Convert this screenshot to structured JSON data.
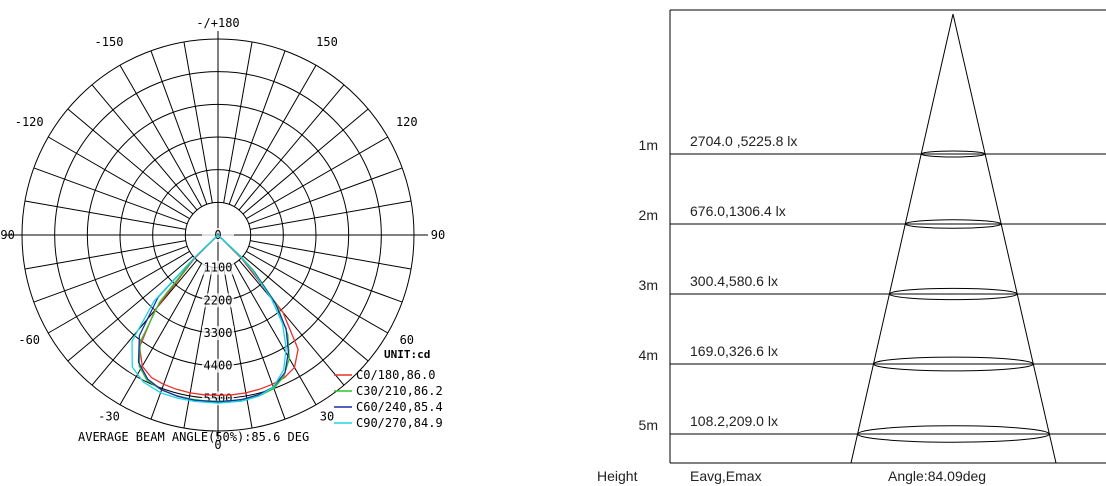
{
  "chart_data": [
    {
      "type": "polar",
      "polar_labels": [
        {
          "text": "-/+180",
          "angle": 180
        },
        {
          "text": "150",
          "angle": 150
        },
        {
          "text": "-150",
          "angle": -150
        },
        {
          "text": "120",
          "angle": 120
        },
        {
          "text": "-120",
          "angle": -120
        },
        {
          "text": "90",
          "angle": 90
        },
        {
          "text": "-90",
          "angle": -90
        },
        {
          "text": "60",
          "angle": 60
        },
        {
          "text": "-60",
          "angle": -60
        },
        {
          "text": "30",
          "angle": 30
        },
        {
          "text": "-30",
          "angle": -30
        },
        {
          "text": "0",
          "angle": 0
        }
      ],
      "radial_labels": [
        "0",
        "1100",
        "2200",
        "3300",
        "4400",
        "5500"
      ],
      "rmax": 5500,
      "unit_label": "UNIT:cd",
      "footer": "AVERAGE BEAM ANGLE(50%):85.6 DEG",
      "series": [
        {
          "name": "C0/180,86.0",
          "color": "#e8302a",
          "points": [
            [
              -45,
              1150
            ],
            [
              -40,
              3300
            ],
            [
              -35,
              4600
            ],
            [
              -30,
              5100
            ],
            [
              -25,
              5300
            ],
            [
              -20,
              5350
            ],
            [
              -15,
              5380
            ],
            [
              -10,
              5400
            ],
            [
              -5,
              5400
            ],
            [
              0,
              5400
            ],
            [
              5,
              5400
            ],
            [
              10,
              5400
            ],
            [
              15,
              5380
            ],
            [
              20,
              5350
            ],
            [
              25,
              5300
            ],
            [
              30,
              5150
            ],
            [
              35,
              4700
            ],
            [
              40,
              3400
            ],
            [
              45,
              1150
            ]
          ]
        },
        {
          "name": "C30/210,86.2",
          "color": "#2ec42e",
          "points": [
            [
              -46,
              1100
            ],
            [
              -41,
              3000
            ],
            [
              -36,
              4450
            ],
            [
              -31,
              5150
            ],
            [
              -26,
              5450
            ],
            [
              -20,
              5550
            ],
            [
              -15,
              5580
            ],
            [
              -10,
              5600
            ],
            [
              -5,
              5600
            ],
            [
              0,
              5600
            ],
            [
              5,
              5600
            ],
            [
              10,
              5600
            ],
            [
              15,
              5580
            ],
            [
              20,
              5500
            ],
            [
              25,
              5250
            ],
            [
              30,
              4800
            ],
            [
              35,
              4100
            ],
            [
              40,
              3100
            ],
            [
              45,
              1700
            ],
            [
              47,
              1000
            ]
          ]
        },
        {
          "name": "C60/240,85.4",
          "color": "#1c2fa8",
          "points": [
            [
              -46,
              1100
            ],
            [
              -44,
              2900
            ],
            [
              -38,
              4300
            ],
            [
              -32,
              5050
            ],
            [
              -26,
              5400
            ],
            [
              -20,
              5550
            ],
            [
              -14,
              5600
            ],
            [
              -8,
              5620
            ],
            [
              0,
              5620
            ],
            [
              8,
              5600
            ],
            [
              14,
              5550
            ],
            [
              20,
              5450
            ],
            [
              26,
              5150
            ],
            [
              31,
              4600
            ],
            [
              36,
              3900
            ],
            [
              40,
              3000
            ],
            [
              44,
              1800
            ],
            [
              46,
              1000
            ]
          ]
        },
        {
          "name": "C90/270,84.9",
          "color": "#18d8e0",
          "points": [
            [
              -46,
              1100
            ],
            [
              -44,
              3100
            ],
            [
              -39,
              4600
            ],
            [
              -33,
              5300
            ],
            [
              -27,
              5550
            ],
            [
              -20,
              5650
            ],
            [
              -14,
              5660
            ],
            [
              -8,
              5660
            ],
            [
              0,
              5660
            ],
            [
              8,
              5650
            ],
            [
              14,
              5600
            ],
            [
              20,
              5450
            ],
            [
              26,
              5050
            ],
            [
              31,
              4450
            ],
            [
              36,
              3700
            ],
            [
              40,
              2800
            ],
            [
              44,
              1700
            ],
            [
              46,
              1000
            ]
          ]
        }
      ]
    },
    {
      "type": "table",
      "rows": [
        {
          "height": "1m",
          "values": "2704.0 ,5225.8 lx"
        },
        {
          "height": "2m",
          "values": "676.0,1306.4 lx"
        },
        {
          "height": "3m",
          "values": "300.4,580.6 lx"
        },
        {
          "height": "4m",
          "values": "169.0,326.6 lx"
        },
        {
          "height": "5m",
          "values": "108.2,209.0 lx"
        }
      ],
      "footer_labels": {
        "height": "Height",
        "values": "Eavg,Emax",
        "angle": "Angle:84.09deg"
      }
    }
  ]
}
